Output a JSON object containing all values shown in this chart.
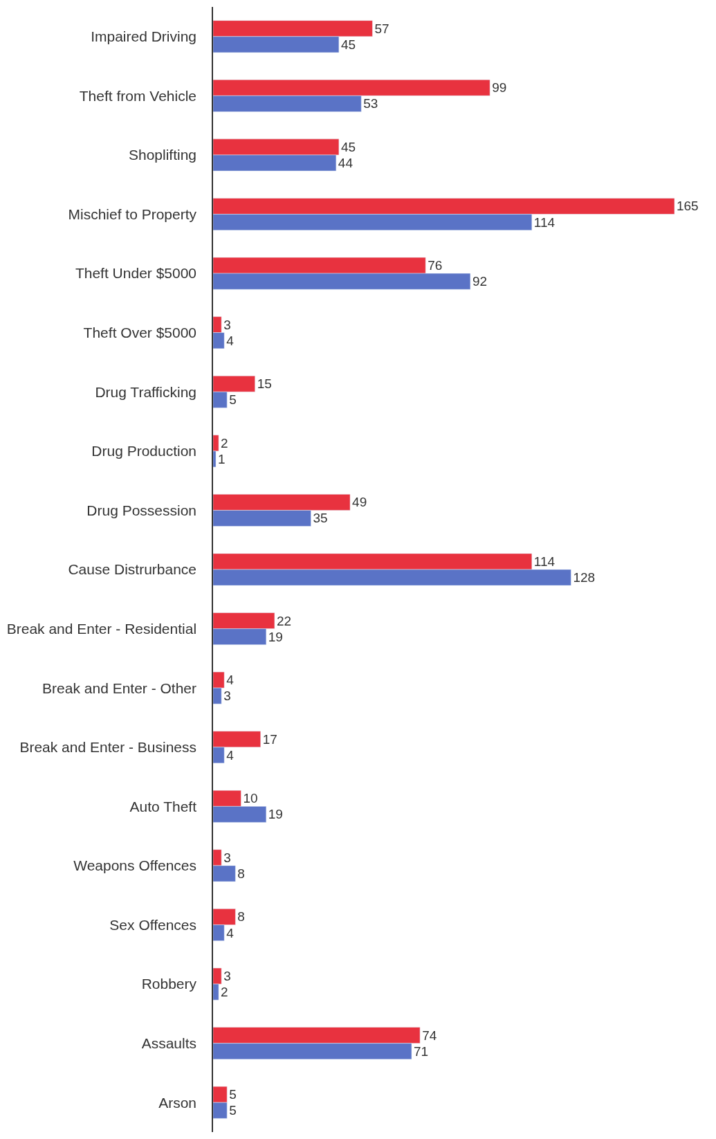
{
  "chart_data": {
    "type": "bar",
    "orientation": "horizontal",
    "data_labels": true,
    "categories": [
      "Impaired Driving",
      "Theft from Vehicle",
      "Shoplifting",
      "Mischief to Property",
      "Theft Under $5000",
      "Theft Over $5000",
      "Drug Trafficking",
      "Drug Production",
      "Drug Possession",
      "Cause Distrurbance",
      "Break and Enter - Residential",
      "Break and Enter - Other",
      "Break and Enter - Business",
      "Auto Theft",
      "Weapons Offences",
      "Sex Offences",
      "Robbery",
      "Assaults",
      "Arson"
    ],
    "series": [
      {
        "color": "#e8323f",
        "values": [
          57,
          99,
          45,
          165,
          76,
          3,
          15,
          2,
          49,
          114,
          22,
          4,
          17,
          10,
          3,
          8,
          3,
          74,
          5
        ]
      },
      {
        "color": "#5a73c6",
        "values": [
          45,
          53,
          44,
          114,
          92,
          4,
          5,
          1,
          35,
          128,
          19,
          3,
          4,
          19,
          8,
          4,
          2,
          71,
          5
        ]
      }
    ]
  }
}
